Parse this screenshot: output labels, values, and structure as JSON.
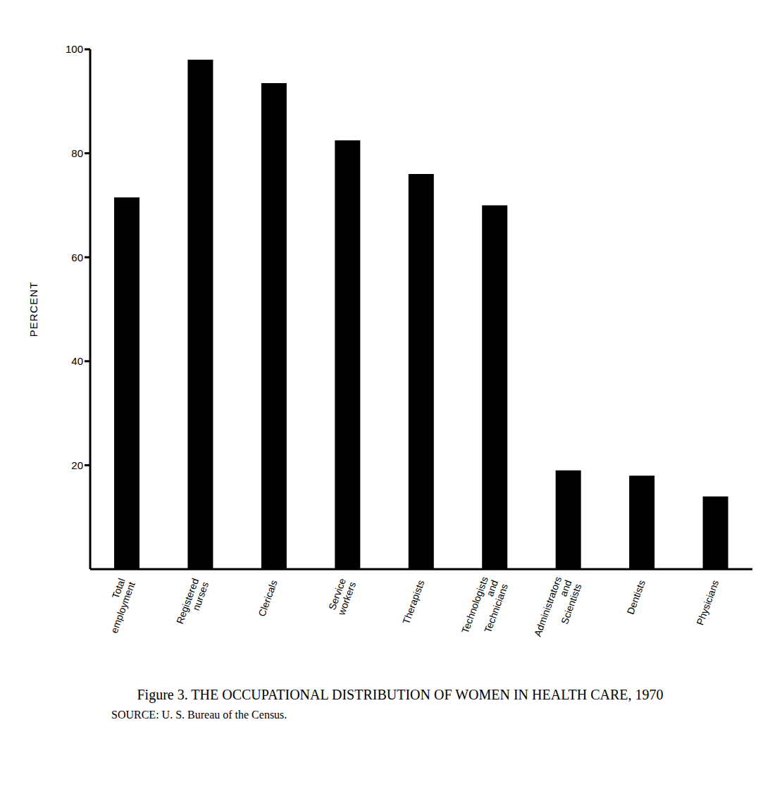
{
  "chart_data": {
    "type": "bar",
    "title": "Figure 3. THE OCCUPATIONAL DISTRIBUTION OF WOMEN IN HEALTH CARE, 1970",
    "annotations": [
      "SOURCE: U. S. Bureau of the Census."
    ],
    "y_label": "PERCENT",
    "categories": [
      "Total employment",
      "Registered nurses",
      "Clericals",
      "Service workers",
      "Therapists",
      "Technologists and Technicians",
      "Administrators and Scientists",
      "Dentists",
      "Physicians"
    ],
    "values": [
      71.5,
      98,
      93.5,
      82.5,
      76,
      70,
      19,
      18,
      14
    ],
    "color": "#000000",
    "ylim": [
      0,
      100
    ],
    "yticks": [
      20,
      40,
      60,
      80,
      100
    ],
    "grid": false
  }
}
